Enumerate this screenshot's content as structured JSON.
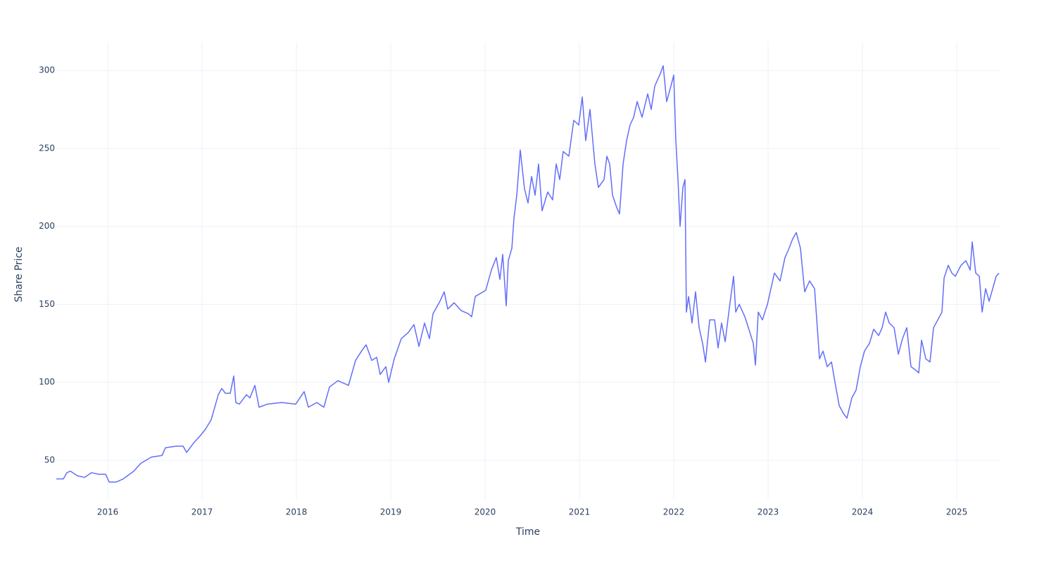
{
  "chart_data": {
    "type": "line",
    "x_label": "Time",
    "y_label": "Share Price",
    "color": "#636efa",
    "grid": true,
    "xlim": [
      2015.455,
      2025.455
    ],
    "ylim": [
      24.7,
      318.1
    ],
    "xticks": [
      2016,
      2017,
      2018,
      2019,
      2020,
      2021,
      2022,
      2023,
      2024,
      2025
    ],
    "yticks": [
      50,
      100,
      150,
      200,
      250,
      300
    ],
    "x": [
      2015.455,
      2015.53,
      2015.567,
      2015.604,
      2015.679,
      2015.754,
      2015.828,
      2015.903,
      2015.978,
      2016.015,
      2016.09,
      2016.164,
      2016.276,
      2016.351,
      2016.463,
      2016.575,
      2016.612,
      2016.724,
      2016.799,
      2016.836,
      2016.91,
      2016.985,
      2017.037,
      2017.097,
      2017.172,
      2017.209,
      2017.246,
      2017.299,
      2017.336,
      2017.358,
      2017.396,
      2017.47,
      2017.507,
      2017.56,
      2017.604,
      2017.694,
      2017.843,
      2017.993,
      2018.082,
      2018.127,
      2018.216,
      2018.291,
      2018.351,
      2018.44,
      2018.552,
      2018.627,
      2018.701,
      2018.739,
      2018.799,
      2018.851,
      2018.888,
      2018.948,
      2018.978,
      2019.037,
      2019.112,
      2019.187,
      2019.246,
      2019.299,
      2019.358,
      2019.41,
      2019.448,
      2019.522,
      2019.567,
      2019.604,
      2019.672,
      2019.746,
      2019.821,
      2019.858,
      2019.896,
      2020.007,
      2020.067,
      2020.119,
      2020.157,
      2020.187,
      2020.224,
      2020.246,
      2020.284,
      2020.306,
      2020.336,
      2020.373,
      2020.418,
      2020.455,
      2020.493,
      2020.53,
      2020.567,
      2020.604,
      2020.664,
      2020.716,
      2020.754,
      2020.791,
      2020.828,
      2020.888,
      2020.94,
      2020.993,
      2021.03,
      2021.067,
      2021.112,
      2021.164,
      2021.201,
      2021.261,
      2021.291,
      2021.321,
      2021.351,
      2021.396,
      2021.425,
      2021.463,
      2021.5,
      2021.537,
      2021.575,
      2021.612,
      2021.664,
      2021.724,
      2021.761,
      2021.799,
      2021.858,
      2021.888,
      2021.925,
      2021.97,
      2022.0,
      2022.022,
      2022.045,
      2022.067,
      2022.097,
      2022.119,
      2022.134,
      2022.157,
      2022.194,
      2022.231,
      2022.269,
      2022.306,
      2022.336,
      2022.381,
      2022.433,
      2022.47,
      2022.507,
      2022.545,
      2022.59,
      2022.634,
      2022.657,
      2022.694,
      2022.754,
      2022.791,
      2022.843,
      2022.866,
      2022.896,
      2022.94,
      2022.993,
      2023.03,
      2023.067,
      2023.127,
      2023.179,
      2023.216,
      2023.261,
      2023.299,
      2023.343,
      2023.388,
      2023.44,
      2023.493,
      2023.545,
      2023.582,
      2023.627,
      2023.672,
      2023.709,
      2023.754,
      2023.799,
      2023.836,
      2023.888,
      2023.933,
      2023.978,
      2024.022,
      2024.075,
      2024.119,
      2024.172,
      2024.209,
      2024.246,
      2024.284,
      2024.336,
      2024.381,
      2024.425,
      2024.47,
      2024.515,
      2024.56,
      2024.597,
      2024.627,
      2024.672,
      2024.716,
      2024.754,
      2024.799,
      2024.843,
      2024.866,
      2024.91,
      2024.948,
      2024.985,
      2025.045,
      2025.097,
      2025.142,
      2025.164,
      2025.201,
      2025.239,
      2025.269,
      2025.306,
      2025.343,
      2025.381,
      2025.418,
      2025.448
    ],
    "values": [
      38,
      38,
      42,
      43,
      40,
      39,
      42,
      41,
      41,
      36,
      36,
      38,
      43,
      48,
      52,
      53,
      58,
      59,
      59,
      55,
      61,
      66,
      70,
      76,
      92,
      96,
      93,
      93,
      104,
      87,
      86,
      92,
      90,
      98,
      84,
      86,
      87,
      86,
      94,
      84,
      87,
      84,
      97,
      101,
      98,
      114,
      121,
      124,
      114,
      116,
      105,
      110,
      100,
      115,
      128,
      132,
      137,
      123,
      138,
      128,
      144,
      152,
      158,
      147,
      151,
      146,
      144,
      142,
      155,
      159,
      172,
      180,
      166,
      182,
      149,
      178,
      186,
      205,
      220,
      249,
      224,
      215,
      232,
      220,
      240,
      210,
      222,
      217,
      240,
      230,
      248,
      245,
      268,
      265,
      283,
      255,
      275,
      240,
      225,
      230,
      245,
      240,
      220,
      212,
      208,
      240,
      255,
      265,
      270,
      280,
      270,
      285,
      275,
      290,
      298,
      303,
      280,
      290,
      297,
      255,
      230,
      200,
      225,
      230,
      145,
      155,
      138,
      158,
      135,
      125,
      113,
      140,
      140,
      122,
      138,
      126,
      148,
      168,
      145,
      150,
      142,
      135,
      125,
      111,
      145,
      140,
      150,
      160,
      170,
      165,
      180,
      185,
      192,
      196,
      186,
      158,
      165,
      160,
      115,
      120,
      110,
      113,
      100,
      85,
      80,
      77,
      90,
      95,
      110,
      120,
      125,
      134,
      130,
      135,
      145,
      138,
      135,
      118,
      128,
      135,
      110,
      108,
      106,
      127,
      115,
      113,
      135,
      140,
      145,
      167,
      175,
      170,
      168,
      175,
      178,
      172,
      190,
      170,
      168,
      145,
      160,
      152,
      160,
      168,
      170
    ]
  }
}
